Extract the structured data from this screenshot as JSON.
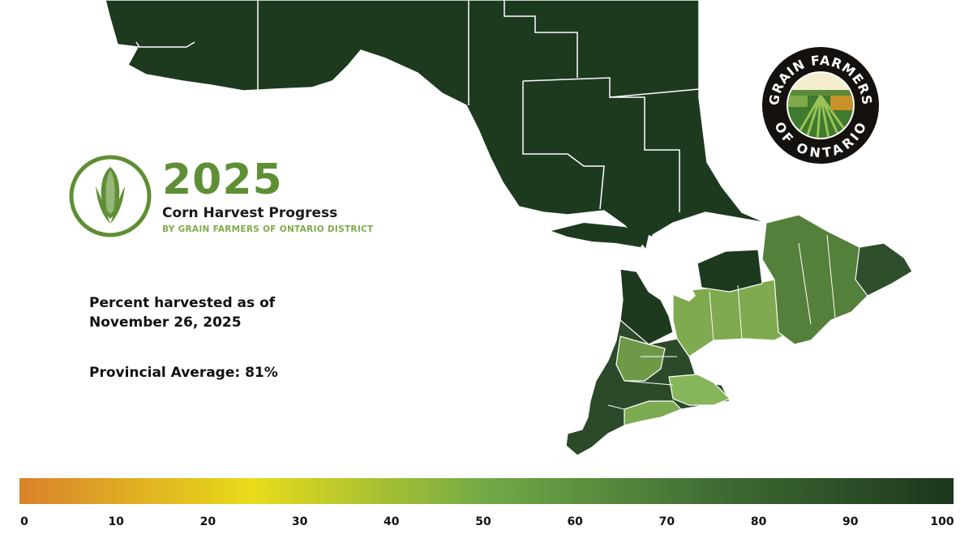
{
  "header": {
    "year": "2025",
    "subtitle": "Corn Harvest Progress",
    "byline": "BY GRAIN FARMERS OF ONTARIO DISTRICT"
  },
  "info": {
    "as_of_line1": "Percent harvested as of",
    "as_of_line2": "November 26, 2025",
    "provincial_average": "Provincial Average: 81%"
  },
  "logo": {
    "top_text": "GRAIN FARMERS",
    "bottom_text": "OF ONTARIO"
  },
  "legend": {
    "ticks": [
      "0",
      "10",
      "20",
      "30",
      "40",
      "50",
      "60",
      "70",
      "80",
      "90",
      "100"
    ],
    "min": 0,
    "max": 100,
    "gradient_stops": [
      {
        "value": 0,
        "color": "#d9822b"
      },
      {
        "value": 25,
        "color": "#e8dc1a"
      },
      {
        "value": 50,
        "color": "#72a947"
      },
      {
        "value": 75,
        "color": "#3f6b33"
      },
      {
        "value": 100,
        "color": "#1c361c"
      }
    ]
  },
  "colors": {
    "brand_green": "#5f8f34",
    "light_green": "#7faa49",
    "dark_forest": "#1d3a1f",
    "north_region": "#1d3a1f",
    "mid_green": "#5f8a45",
    "lake": "#ffffff"
  }
}
